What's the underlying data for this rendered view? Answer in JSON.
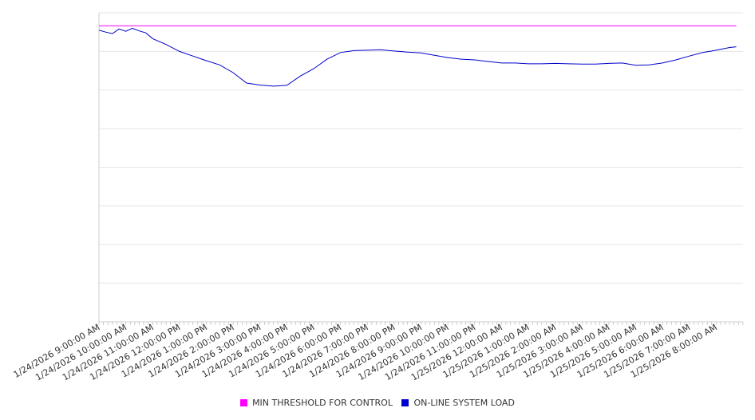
{
  "chart_data": {
    "type": "line",
    "title": "",
    "xlabel": "",
    "ylabel": "",
    "grid": true,
    "legend_position": "bottom",
    "yaxis_labels_visible": false,
    "ylim": [
      0,
      8
    ],
    "x_tick_labels": [
      "1/24/2026 9:00:00 AM",
      "1/24/2026 10:00:00 AM",
      "1/24/2026 11:00:00 AM",
      "1/24/2026 12:00:00 PM",
      "1/24/2026 1:00:00 PM",
      "1/24/2026 2:00:00 PM",
      "1/24/2026 3:00:00 PM",
      "1/24/2026 4:00:00 PM",
      "1/24/2026 5:00:00 PM",
      "1/24/2026 6:00:00 PM",
      "1/24/2026 7:00:00 PM",
      "1/24/2026 8:00:00 PM",
      "1/24/2026 9:00:00 PM",
      "1/24/2026 10:00:00 PM",
      "1/24/2026 11:00:00 PM",
      "1/25/2026 12:00:00 AM",
      "1/25/2026 1:00:00 AM",
      "1/25/2026 2:00:00 AM",
      "1/25/2026 3:00:00 AM",
      "1/25/2026 4:00:00 AM",
      "1/25/2026 5:00:00 AM",
      "1/25/2026 6:00:00 AM",
      "1/25/2026 7:00:00 AM",
      "1/25/2026 8:00:00 AM"
    ],
    "x": [
      "1/24/2026 9:00:00 AM",
      "1/24/2026 9:15:00 AM",
      "1/24/2026 9:30:00 AM",
      "1/24/2026 9:45:00 AM",
      "1/24/2026 10:00:00 AM",
      "1/24/2026 10:15:00 AM",
      "1/24/2026 10:30:00 AM",
      "1/24/2026 10:45:00 AM",
      "1/24/2026 11:00:00 AM",
      "1/24/2026 11:30:00 AM",
      "1/24/2026 12:00:00 PM",
      "1/24/2026 12:30:00 PM",
      "1/24/2026 1:00:00 PM",
      "1/24/2026 1:30:00 PM",
      "1/24/2026 2:00:00 PM",
      "1/24/2026 2:30:00 PM",
      "1/24/2026 3:00:00 PM",
      "1/24/2026 3:30:00 PM",
      "1/24/2026 4:00:00 PM",
      "1/24/2026 4:30:00 PM",
      "1/24/2026 5:00:00 PM",
      "1/24/2026 5:30:00 PM",
      "1/24/2026 6:00:00 PM",
      "1/24/2026 6:30:00 PM",
      "1/24/2026 7:00:00 PM",
      "1/24/2026 7:30:00 PM",
      "1/24/2026 8:00:00 PM",
      "1/24/2026 8:30:00 PM",
      "1/24/2026 9:00:00 PM",
      "1/24/2026 9:30:00 PM",
      "1/24/2026 10:00:00 PM",
      "1/24/2026 10:30:00 PM",
      "1/24/2026 11:00:00 PM",
      "1/24/2026 11:30:00 PM",
      "1/25/2026 12:00:00 AM",
      "1/25/2026 12:30:00 AM",
      "1/25/2026 1:00:00 AM",
      "1/25/2026 1:30:00 AM",
      "1/25/2026 2:00:00 AM",
      "1/25/2026 2:30:00 AM",
      "1/25/2026 3:00:00 AM",
      "1/25/2026 3:30:00 AM",
      "1/25/2026 4:00:00 AM",
      "1/25/2026 4:30:00 AM",
      "1/25/2026 5:00:00 AM",
      "1/25/2026 5:30:00 AM",
      "1/25/2026 6:00:00 AM",
      "1/25/2026 6:30:00 AM",
      "1/25/2026 7:00:00 AM",
      "1/25/2026 7:30:00 AM",
      "1/25/2026 8:00:00 AM",
      "1/25/2026 8:30:00 AM",
      "1/25/2026 8:45:00 AM"
    ],
    "series": [
      {
        "name": "MIN THRESHOLD FOR CONTROL",
        "color": "#ff00ff",
        "values": [
          7.66,
          7.66,
          7.66,
          7.66,
          7.66,
          7.66,
          7.66,
          7.66,
          7.66,
          7.66,
          7.66,
          7.66,
          7.66,
          7.66,
          7.66,
          7.66,
          7.66,
          7.66,
          7.66,
          7.66,
          7.66,
          7.66,
          7.66,
          7.66,
          7.66,
          7.66,
          7.66,
          7.66,
          7.66,
          7.66,
          7.66,
          7.66,
          7.66,
          7.66,
          7.66,
          7.66,
          7.66,
          7.66,
          7.66,
          7.66,
          7.66,
          7.66,
          7.66,
          7.66,
          7.66,
          7.66,
          7.66,
          7.66,
          7.66,
          7.66,
          7.66,
          7.66,
          7.66
        ]
      },
      {
        "name": "ON-LINE SYSTEM LOAD",
        "color": "#0000cc",
        "values": [
          7.55,
          7.5,
          7.46,
          7.58,
          7.52,
          7.6,
          7.53,
          7.48,
          7.33,
          7.18,
          7.0,
          6.88,
          6.76,
          6.65,
          6.45,
          6.18,
          6.13,
          6.1,
          6.12,
          6.36,
          6.55,
          6.8,
          6.97,
          7.02,
          7.03,
          7.04,
          7.01,
          6.98,
          6.96,
          6.9,
          6.84,
          6.8,
          6.78,
          6.74,
          6.7,
          6.7,
          6.68,
          6.68,
          6.69,
          6.68,
          6.67,
          6.67,
          6.69,
          6.7,
          6.64,
          6.65,
          6.7,
          6.78,
          6.88,
          6.97,
          7.03,
          7.1,
          7.12
        ]
      }
    ]
  },
  "legend": {
    "items": [
      {
        "label": "MIN THRESHOLD FOR CONTROL",
        "color": "#ff00ff"
      },
      {
        "label": "ON-LINE SYSTEM LOAD",
        "color": "#0000cc"
      }
    ]
  }
}
